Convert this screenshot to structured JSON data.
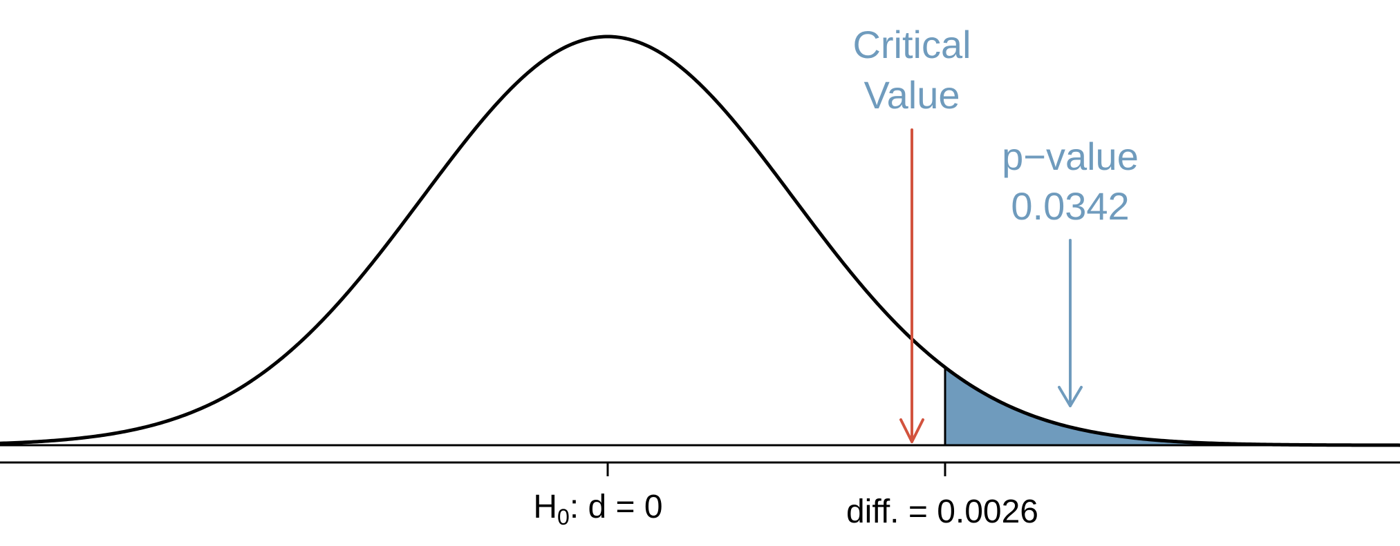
{
  "diagram": {
    "type": "normal-distribution-hypothesis-test",
    "annotations": {
      "critical_value": {
        "line1": "Critical",
        "line2": "Value"
      },
      "p_value": {
        "line1": "p−value",
        "line2": "0.0342"
      }
    },
    "axis": {
      "null_label": {
        "main": "H",
        "subscript": "0",
        "rest": ": d = 0"
      },
      "observed_label": "diff. = 0.0026"
    },
    "colors": {
      "curve": "#000000",
      "shade": "#6f9bbd",
      "critical_arrow": "#d2533e",
      "annotation_text": "#6f9bbd",
      "pvalue_arrow": "#6f9bbd"
    }
  }
}
